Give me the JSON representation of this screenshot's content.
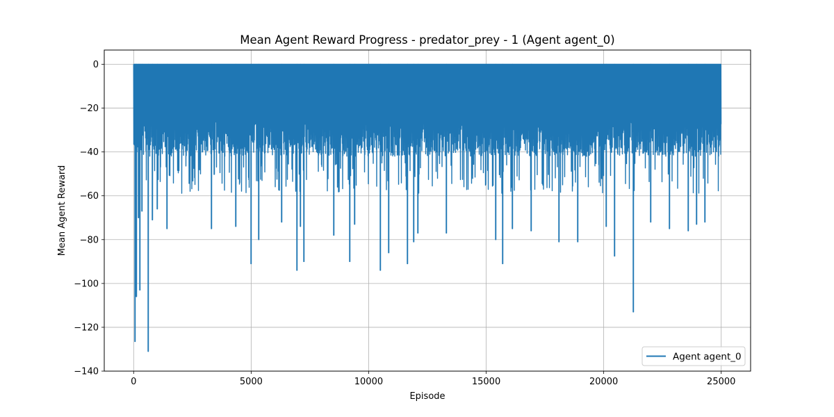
{
  "chart_data": {
    "type": "line",
    "title": "Mean Agent Reward Progress - predator_prey - 1 (Agent agent_0)",
    "xlabel": "Episode",
    "ylabel": "Mean Agent Reward",
    "xlim": [
      -1250,
      26250
    ],
    "ylim": [
      -140,
      6.5
    ],
    "xticks": [
      0,
      5000,
      10000,
      15000,
      20000,
      25000
    ],
    "xtick_labels": [
      "0",
      "5000",
      "10000",
      "15000",
      "20000",
      "25000"
    ],
    "yticks": [
      0,
      -20,
      -40,
      -60,
      -80,
      -100,
      -120,
      -140
    ],
    "ytick_labels": [
      "0",
      "−20",
      "−40",
      "−60",
      "−80",
      "−100",
      "−120",
      "−140"
    ],
    "grid": true,
    "legend_position": "lower right",
    "series": [
      {
        "name": "Agent agent_0",
        "color": "#1f77b4",
        "x_range": [
          0,
          25000
        ],
        "upper_envelope": 0,
        "notable_minima": [
          {
            "x": 60,
            "y": -126.5
          },
          {
            "x": 120,
            "y": -106
          },
          {
            "x": 200,
            "y": -70
          },
          {
            "x": 260,
            "y": -103
          },
          {
            "x": 340,
            "y": -67
          },
          {
            "x": 600,
            "y": -131
          },
          {
            "x": 800,
            "y": -71
          },
          {
            "x": 1000,
            "y": -66
          },
          {
            "x": 1400,
            "y": -75
          },
          {
            "x": 3300,
            "y": -75
          },
          {
            "x": 4350,
            "y": -74
          },
          {
            "x": 5000,
            "y": -91
          },
          {
            "x": 5300,
            "y": -80
          },
          {
            "x": 6300,
            "y": -72
          },
          {
            "x": 6950,
            "y": -94
          },
          {
            "x": 7100,
            "y": -74
          },
          {
            "x": 7250,
            "y": -90
          },
          {
            "x": 8500,
            "y": -78
          },
          {
            "x": 9200,
            "y": -90
          },
          {
            "x": 9400,
            "y": -73
          },
          {
            "x": 10500,
            "y": -94
          },
          {
            "x": 10850,
            "y": -86
          },
          {
            "x": 11650,
            "y": -91
          },
          {
            "x": 11900,
            "y": -81
          },
          {
            "x": 12100,
            "y": -77
          },
          {
            "x": 13300,
            "y": -77
          },
          {
            "x": 15400,
            "y": -80
          },
          {
            "x": 15700,
            "y": -91
          },
          {
            "x": 16100,
            "y": -75
          },
          {
            "x": 16900,
            "y": -76
          },
          {
            "x": 18100,
            "y": -81
          },
          {
            "x": 18900,
            "y": -81
          },
          {
            "x": 20100,
            "y": -74
          },
          {
            "x": 20450,
            "y": -87.5
          },
          {
            "x": 21250,
            "y": -113
          },
          {
            "x": 22000,
            "y": -72
          },
          {
            "x": 22800,
            "y": -75
          },
          {
            "x": 23600,
            "y": -76
          },
          {
            "x": 23950,
            "y": -73
          },
          {
            "x": 24300,
            "y": -72
          }
        ]
      }
    ]
  }
}
